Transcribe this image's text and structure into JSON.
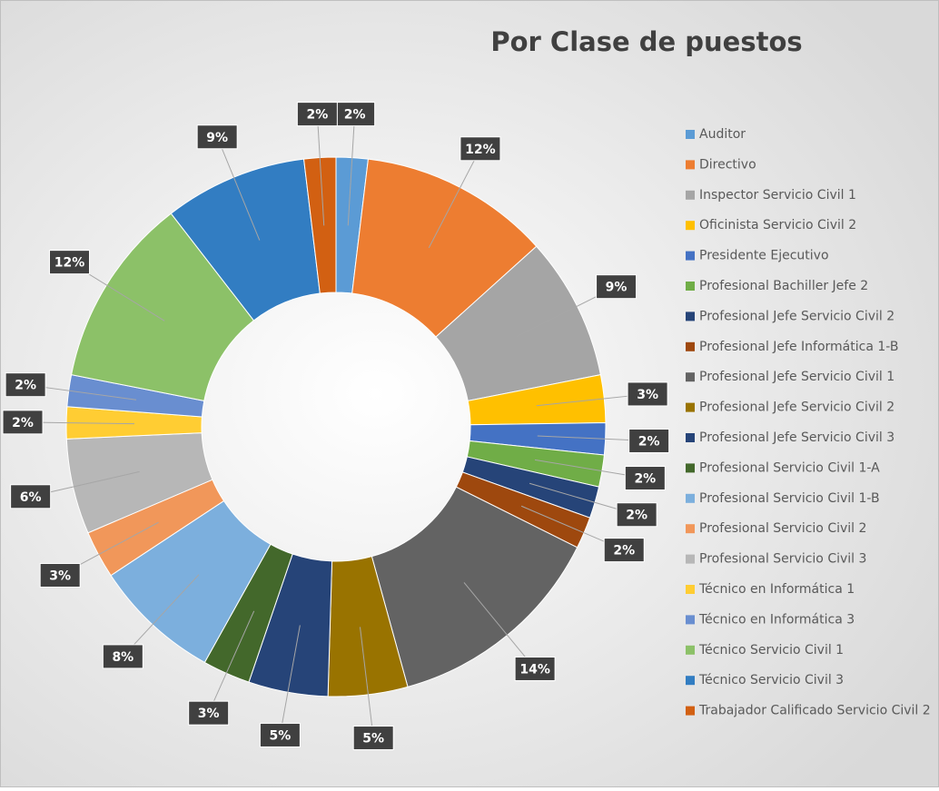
{
  "chart_data": {
    "type": "donut",
    "title": "Por Clase de puestos",
    "categories": [
      "Auditor",
      "Directivo",
      "Inspector Servicio Civil 1",
      "Oficinista Servicio Civil 2",
      "Presidente Ejecutivo",
      "Profesional Bachiller Jefe 2",
      "Profesional Jefe Servicio Civil 2",
      "Profesional Jefe Informática 1-B",
      "Profesional Jefe Servicio Civil 1",
      "Profesional Jefe Servicio Civil 2",
      "Profesional Jefe Servicio Civil 3",
      "Profesional Servicio Civil 1-A",
      "Profesional Servicio Civil 1-B",
      "Profesional Servicio Civil 2",
      "Profesional Servicio Civil 3",
      "Técnico en Informática 1",
      "Técnico en Informática 3",
      "Técnico Servicio Civil 1",
      "Técnico Servicio Civil 3",
      "Trabajador Calificado Servicio Civil 2"
    ],
    "values": [
      2,
      12,
      9,
      3,
      2,
      2,
      2,
      2,
      14,
      5,
      5,
      3,
      8,
      3,
      6,
      2,
      2,
      12,
      9,
      2
    ],
    "value_labels": [
      "2%",
      "12%",
      "9%",
      "3%",
      "2%",
      "2%",
      "2%",
      "2%",
      "14%",
      "5%",
      "5%",
      "3%",
      "8%",
      "3%",
      "6%",
      "2%",
      "2%",
      "12%",
      "9%",
      "2%"
    ],
    "colors": [
      "#5B9BD5",
      "#ED7D31",
      "#A5A5A5",
      "#FFC000",
      "#4472C4",
      "#70AD47",
      "#264478",
      "#9E480E",
      "#636363",
      "#997300",
      "#264478",
      "#43682B",
      "#7CAFDD",
      "#F1975A",
      "#B7B7B7",
      "#FFCD33",
      "#698ED0",
      "#8CC168",
      "#327DC2",
      "#D26012"
    ],
    "legend": "right"
  }
}
